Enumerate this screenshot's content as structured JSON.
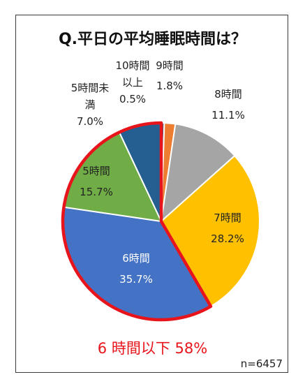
{
  "title": "Q.平日の平均睡眠時間は？",
  "summary": "6 時間以下 58%",
  "sample_size": "n=6457",
  "colors": {
    "highlight_outline": "#e8141b",
    "label_dark": "#222222",
    "label_light": "#ffffff"
  },
  "chart_data": {
    "type": "pie",
    "title": "Q.平日の平均睡眠時間は？",
    "start": "12 o'clock, clockwise",
    "slices": [
      {
        "name": "10時間以上",
        "label": [
          "10時間",
          "以上"
        ],
        "pct_text": "0.5%",
        "value": 0.5,
        "color": "#4a5a6e",
        "label_color": "#222222"
      },
      {
        "name": "9時間",
        "label": [
          "9時間"
        ],
        "pct_text": "1.8%",
        "value": 1.8,
        "color": "#ed7d31",
        "label_color": "#222222"
      },
      {
        "name": "8時間",
        "label": [
          "8時間"
        ],
        "pct_text": "11.1%",
        "value": 11.1,
        "color": "#a5a5a5",
        "label_color": "#222222"
      },
      {
        "name": "7時間",
        "label": [
          "7時間"
        ],
        "pct_text": "28.2%",
        "value": 28.2,
        "color": "#ffc000",
        "label_color": "#222222"
      },
      {
        "name": "6時間",
        "label": [
          "6時間"
        ],
        "pct_text": "35.7%",
        "value": 35.7,
        "color": "#4472c4",
        "label_color": "#ffffff"
      },
      {
        "name": "5時間",
        "label": [
          "5時間"
        ],
        "pct_text": "15.7%",
        "value": 15.7,
        "color": "#70ad47",
        "label_color": "#222222"
      },
      {
        "name": "5時間未満",
        "label": [
          "5時間未",
          "満"
        ],
        "pct_text": "7.0%",
        "value": 7.0,
        "color": "#255e91",
        "label_color": "#222222"
      }
    ],
    "highlight": {
      "label": "6 時間以下 58%",
      "slices": [
        "6時間",
        "5時間",
        "5時間未満"
      ],
      "total_pct": 58
    }
  }
}
